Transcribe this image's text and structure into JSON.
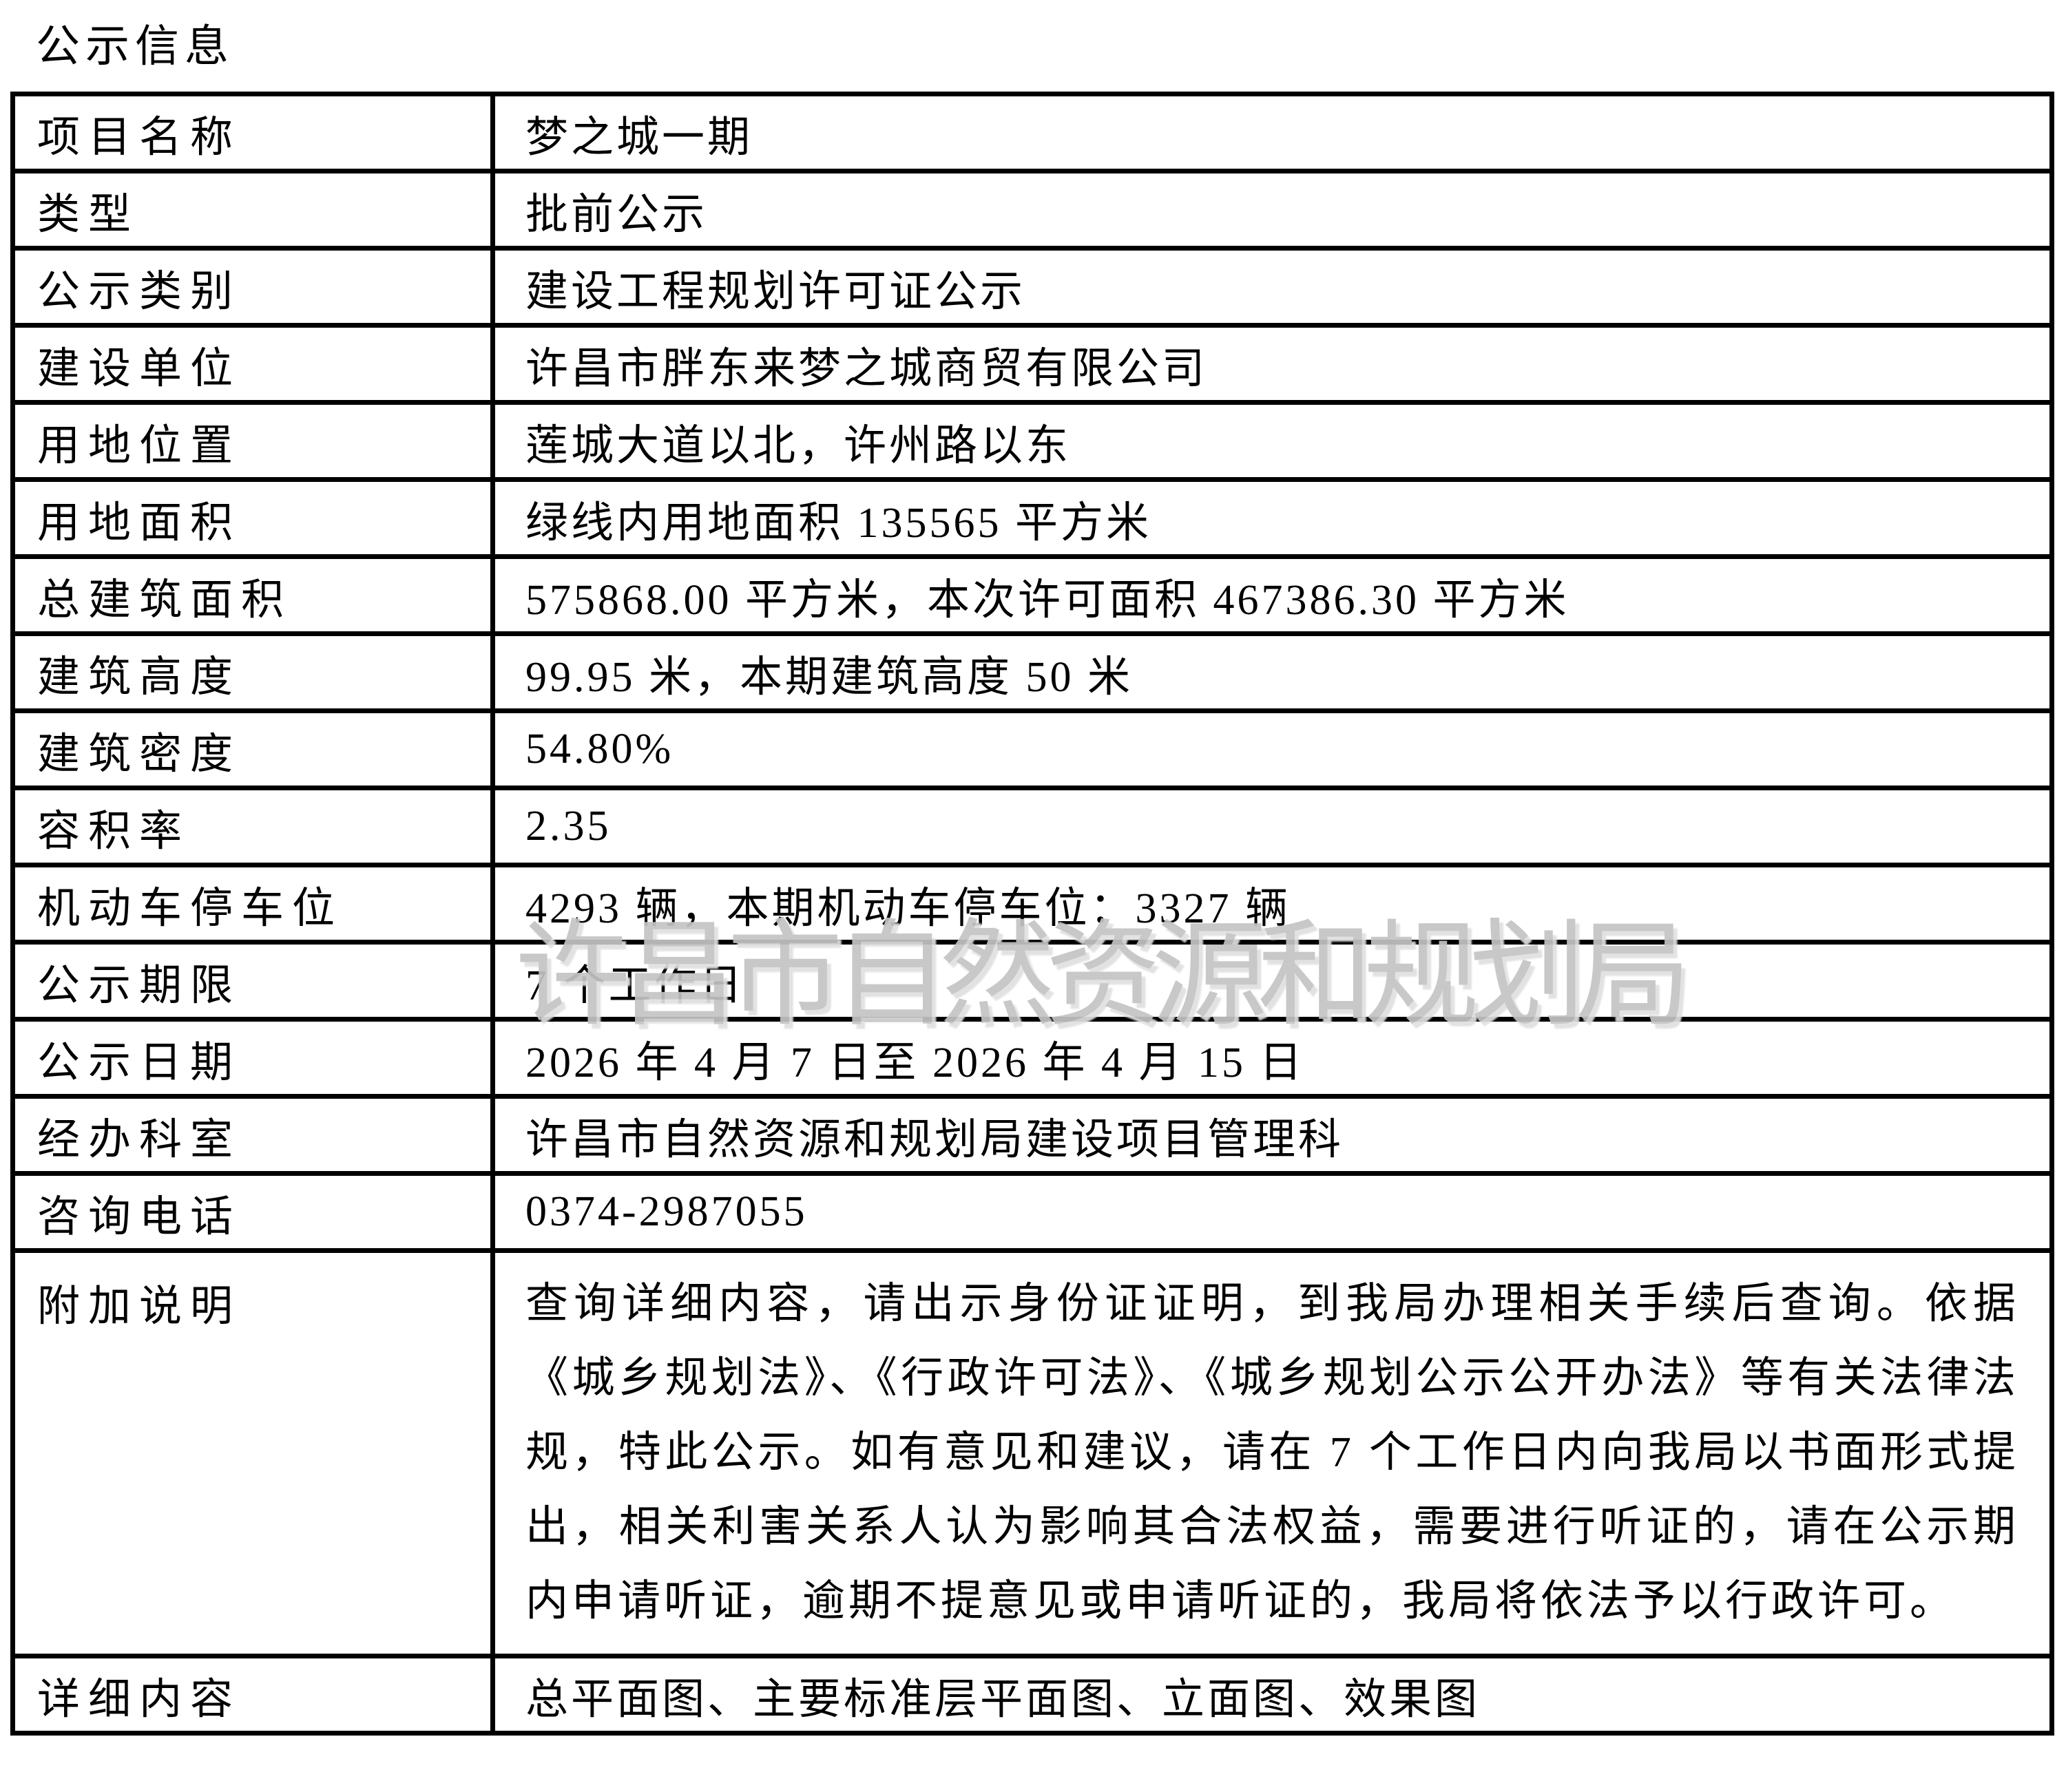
{
  "page_title": "公示信息",
  "watermark_text": "许昌市自然资源和规划局",
  "colors": {
    "text": "#000000",
    "border": "#000000",
    "background": "#ffffff",
    "watermark": "#c4c4c4"
  },
  "table": {
    "rows": [
      {
        "label": "项目名称",
        "value": "梦之城一期",
        "multiline": false
      },
      {
        "label": "类型",
        "value": "批前公示",
        "multiline": false
      },
      {
        "label": "公示类别",
        "value": "建设工程规划许可证公示",
        "multiline": false
      },
      {
        "label": "建设单位",
        "value": "许昌市胖东来梦之城商贸有限公司",
        "multiline": false
      },
      {
        "label": "用地位置",
        "value": "莲城大道以北，许州路以东",
        "multiline": false
      },
      {
        "label": "用地面积",
        "value": "绿线内用地面积 135565 平方米",
        "multiline": false
      },
      {
        "label": "总建筑面积",
        "value": "575868.00 平方米，本次许可面积 467386.30 平方米",
        "multiline": false
      },
      {
        "label": "建筑高度",
        "value": "99.95 米，本期建筑高度 50 米",
        "multiline": false
      },
      {
        "label": "建筑密度",
        "value": "54.80%",
        "multiline": false
      },
      {
        "label": "容积率",
        "value": "2.35",
        "multiline": false
      },
      {
        "label": "机动车停车位",
        "value": "4293 辆，本期机动车停车位：3327 辆",
        "multiline": false
      },
      {
        "label": "公示期限",
        "value": "7 个工作日",
        "multiline": false
      },
      {
        "label": "公示日期",
        "value": "2026 年 4 月 7 日至 2026 年 4 月 15 日",
        "multiline": false
      },
      {
        "label": "经办科室",
        "value": "许昌市自然资源和规划局建设项目管理科",
        "multiline": false
      },
      {
        "label": "咨询电话",
        "value": "0374-2987055",
        "multiline": false
      },
      {
        "label": "附加说明",
        "value": "查询详细内容，请出示身份证证明，到我局办理相关手续后查询。依据《城乡规划法》、《行政许可法》、《城乡规划公示公开办法》等有关法律法规，特此公示。如有意见和建议，请在 7 个工作日内向我局以书面形式提出，相关利害关系人认为影响其合法权益，需要进行听证的，请在公示期内申请听证，逾期不提意见或申请听证的，我局将依法予以行政许可。",
        "multiline": true
      },
      {
        "label": "详细内容",
        "value": "总平面图、主要标准层平面图、立面图、效果图",
        "multiline": false
      }
    ]
  }
}
